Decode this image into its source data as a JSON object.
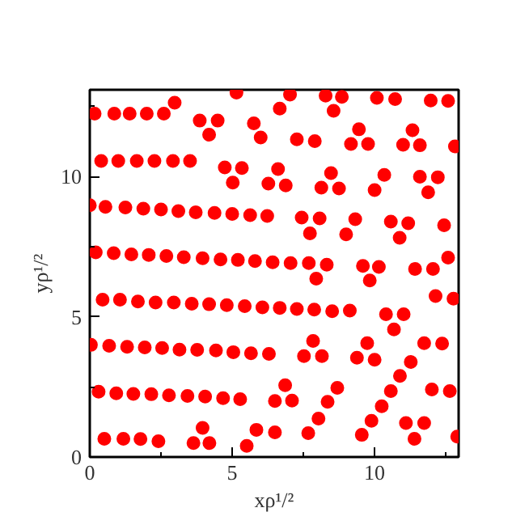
{
  "chart_data": {
    "type": "scatter",
    "xlabel": "xρ¹/²",
    "ylabel": "yρ¹/²",
    "marker": "circle",
    "grid": false,
    "xlim": [
      0,
      12.95
    ],
    "ylim": [
      0,
      13.1
    ],
    "xticks": [
      0,
      {
        "value": 2.5,
        "label": null
      },
      5,
      {
        "value": 7.5,
        "label": null
      },
      10,
      {
        "value": 12.5,
        "label": null
      }
    ],
    "yticks": [
      0,
      {
        "value": 2.5,
        "label": null
      },
      5,
      {
        "value": 7.5,
        "label": null
      },
      10,
      {
        "value": 12.5,
        "label": null
      }
    ],
    "series": [
      {
        "color": "#ff0000",
        "x": [
          0.17,
          0.86,
          1.4,
          2.0,
          2.6,
          2.98,
          3.86,
          4.19,
          4.49,
          5.15,
          5.76,
          6.0,
          0.4,
          1.0,
          1.65,
          2.27,
          2.92,
          3.52,
          4.74,
          5.02,
          5.34,
          6.27,
          6.61,
          0.0,
          0.55,
          1.25,
          1.88,
          2.5,
          3.11,
          3.72,
          4.38,
          5.0,
          5.63,
          6.23,
          0.21,
          0.84,
          1.46,
          2.07,
          2.69,
          3.3,
          3.96,
          4.59,
          5.2,
          5.8,
          6.42,
          0.45,
          1.06,
          1.69,
          2.31,
          2.95,
          3.58,
          4.19,
          4.81,
          5.44,
          6.06,
          0.04,
          0.68,
          1.31,
          1.93,
          2.54,
          3.15,
          3.77,
          4.43,
          5.04,
          5.66,
          6.29,
          0.31,
          0.93,
          1.53,
          2.16,
          2.78,
          3.43,
          4.05,
          4.68,
          5.28,
          6.5,
          0.51,
          1.18,
          1.78,
          2.41,
          3.64,
          4.2,
          3.96,
          5.51,
          5.85,
          6.5,
          7.03,
          6.67,
          8.28,
          8.85,
          8.56,
          10.08,
          10.72,
          11.97,
          12.58,
          7.27,
          7.9,
          9.45,
          9.17,
          9.77,
          11.33,
          11.0,
          11.59,
          12.82,
          6.88,
          8.47,
          8.13,
          8.75,
          10.34,
          10.0,
          11.59,
          12.22,
          11.88,
          7.44,
          8.07,
          7.73,
          9.32,
          9.0,
          10.57,
          11.18,
          10.88,
          12.44,
          7.05,
          7.69,
          8.32,
          7.95,
          9.59,
          10.15,
          9.83,
          11.42,
          12.05,
          12.58,
          12.14,
          12.77,
          6.67,
          7.27,
          7.88,
          8.51,
          9.13,
          10.4,
          11.02,
          10.68,
          7.84,
          7.52,
          8.15,
          9.74,
          9.38,
          10.0,
          11.27,
          11.74,
          12.37,
          6.86,
          7.1,
          8.69,
          8.35,
          8.03,
          7.67,
          10.57,
          10.89,
          10.25,
          9.89,
          9.55,
          12.01,
          12.64,
          11.1,
          11.74,
          11.4,
          12.9
        ],
        "values": [
          12.25,
          12.25,
          12.25,
          12.25,
          12.25,
          12.64,
          12.0,
          11.5,
          12.0,
          13.0,
          11.9,
          11.4,
          10.56,
          10.56,
          10.56,
          10.56,
          10.56,
          10.56,
          10.33,
          9.79,
          10.31,
          9.75,
          10.27,
          8.98,
          8.92,
          8.9,
          8.86,
          8.83,
          8.77,
          8.73,
          8.71,
          8.67,
          8.63,
          8.6,
          7.3,
          7.27,
          7.23,
          7.21,
          7.17,
          7.13,
          7.09,
          7.05,
          7.03,
          6.99,
          6.95,
          5.61,
          5.61,
          5.55,
          5.51,
          5.51,
          5.47,
          5.45,
          5.42,
          5.38,
          5.34,
          4.0,
          3.97,
          3.93,
          3.91,
          3.89,
          3.83,
          3.82,
          3.8,
          3.74,
          3.7,
          3.68,
          2.33,
          2.27,
          2.25,
          2.24,
          2.2,
          2.18,
          2.16,
          2.1,
          2.06,
          2.0,
          0.65,
          0.65,
          0.64,
          0.56,
          0.5,
          0.5,
          1.04,
          0.4,
          0.97,
          0.88,
          12.93,
          12.43,
          12.89,
          12.85,
          12.35,
          12.81,
          12.77,
          12.72,
          12.7,
          11.33,
          11.27,
          11.69,
          11.17,
          11.17,
          11.66,
          11.14,
          11.12,
          11.08,
          9.69,
          10.13,
          9.61,
          9.58,
          10.06,
          9.52,
          10.0,
          9.98,
          9.44,
          8.54,
          8.51,
          7.98,
          8.48,
          7.94,
          8.4,
          8.34,
          7.82,
          8.27,
          6.92,
          6.92,
          6.86,
          6.36,
          6.82,
          6.78,
          6.3,
          6.71,
          6.71,
          7.11,
          5.74,
          5.65,
          5.32,
          5.28,
          5.26,
          5.2,
          5.22,
          5.09,
          5.09,
          4.55,
          4.14,
          3.6,
          3.6,
          4.06,
          3.54,
          3.47,
          3.39,
          4.06,
          4.05,
          2.56,
          2.01,
          2.47,
          1.97,
          1.37,
          0.85,
          2.35,
          2.89,
          1.81,
          1.29,
          0.79,
          2.41,
          2.35,
          1.21,
          1.21,
          0.65,
          0.73
        ]
      }
    ]
  }
}
